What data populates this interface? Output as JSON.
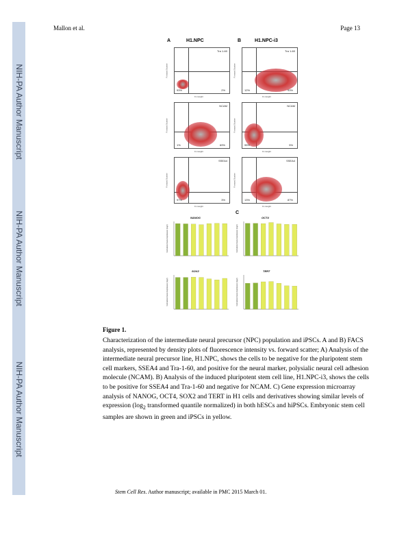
{
  "side_labels": [
    "NIH-PA Author Manuscript",
    "NIH-PA Author Manuscript",
    "NIH-PA Author Manuscript"
  ],
  "header": {
    "left": "Mallon et al.",
    "right": "Page 13"
  },
  "figure": {
    "panel_a": "A",
    "panel_b": "B",
    "panel_c": "C",
    "title_a": "H1.NPC",
    "title_b": "H1.NPC-i3",
    "axis_y": "Forward Scatter",
    "axis_x": "FL Height",
    "facs": [
      {
        "marker": "Tra 1-60",
        "left_pct": "93%",
        "right_pct": "2%"
      },
      {
        "marker": "Tra 1-60",
        "left_pct": "12%",
        "right_pct": "93%"
      },
      {
        "marker": "NCAM",
        "left_pct": "1%",
        "right_pct": "69%"
      },
      {
        "marker": "NCAM",
        "left_pct": "95%",
        "right_pct": "5%"
      },
      {
        "marker": "SSEA4",
        "left_pct": "97%",
        "right_pct": "3%"
      },
      {
        "marker": "SSEA4",
        "left_pct": "13%",
        "right_pct": "87%"
      }
    ]
  },
  "chart_data": [
    {
      "type": "bar",
      "title": "NANOG",
      "ylabel": "Normalized Gene Expression (log2)",
      "ylim": [
        0,
        13
      ],
      "values": [
        12.2,
        12.1,
        12.0,
        11.8,
        12.2,
        12.3,
        12.2
      ],
      "colors": [
        "#8ab33a",
        "#8ab33a",
        "#e3eb5c",
        "#e3eb5c",
        "#e3eb5c",
        "#e3eb5c",
        "#e3eb5c"
      ]
    },
    {
      "type": "bar",
      "title": "OCT4",
      "ylabel": "Normalized Gene Expression (log2)",
      "ylim": [
        0,
        13
      ],
      "values": [
        12.3,
        12.3,
        12.2,
        12.6,
        12.1,
        11.9,
        11.9
      ],
      "colors": [
        "#8ab33a",
        "#8ab33a",
        "#e3eb5c",
        "#e3eb5c",
        "#e3eb5c",
        "#e3eb5c",
        "#e3eb5c"
      ]
    },
    {
      "type": "bar",
      "title": "SOX2",
      "ylabel": "Normalized Gene Expression (log2)",
      "ylim": [
        0,
        14
      ],
      "values": [
        13.0,
        13.0,
        13.1,
        13.0,
        12.4,
        12.0,
        12.6
      ],
      "colors": [
        "#8ab33a",
        "#8ab33a",
        "#e3eb5c",
        "#e3eb5c",
        "#e3eb5c",
        "#e3eb5c",
        "#e3eb5c"
      ]
    },
    {
      "type": "bar",
      "title": "TERT",
      "ylabel": "Normalized Gene Expression (log2)",
      "ylim": [
        0,
        12
      ],
      "values": [
        9.1,
        9.2,
        9.6,
        9.7,
        9.1,
        8.2,
        8.1
      ],
      "colors": [
        "#8ab33a",
        "#8ab33a",
        "#e3eb5c",
        "#e3eb5c",
        "#e3eb5c",
        "#e3eb5c",
        "#e3eb5c"
      ]
    }
  ],
  "caption": {
    "title": "Figure 1.",
    "pre": "Characterization of the intermediate neural precursor (NPC) population and iPSCs. A and B) FACS analysis, represented by density plots of fluorescence intensity vs. forward scatter; A) Analysis of the intermediate neural precursor line, H1.NPC, shows the cells to be negative for the pluripotent stem cell markers, SSEA4 and Tra-1-60, and positive for the neural marker, polysialic neural cell adhesion molecule (NCAM). B) Analysis of the induced pluripotent stem cell line, H1.NPC-i3, shows the cells to be positive for SSEA4 and Tra-1-60 and negative for NCAM. C) Gene expression microarray analysis of NANOG, OCT4, SOX2 and TERT in H1 cells and derivatives showing similar levels of expression (log",
    "sub": "2",
    "post": " transformed quantile normalized) in both hESCs and hiPSCs. Embryonic stem cell samples are shown in green and iPSCs in yellow."
  },
  "footer": {
    "journal": "Stem Cell Res",
    "rest": ". Author manuscript; available in PMC 2015 March 01."
  },
  "colors": {
    "band": "#c9d6e8",
    "dots": "#c8202a",
    "esc": "#8ab33a",
    "ipsc": "#e3eb5c"
  }
}
